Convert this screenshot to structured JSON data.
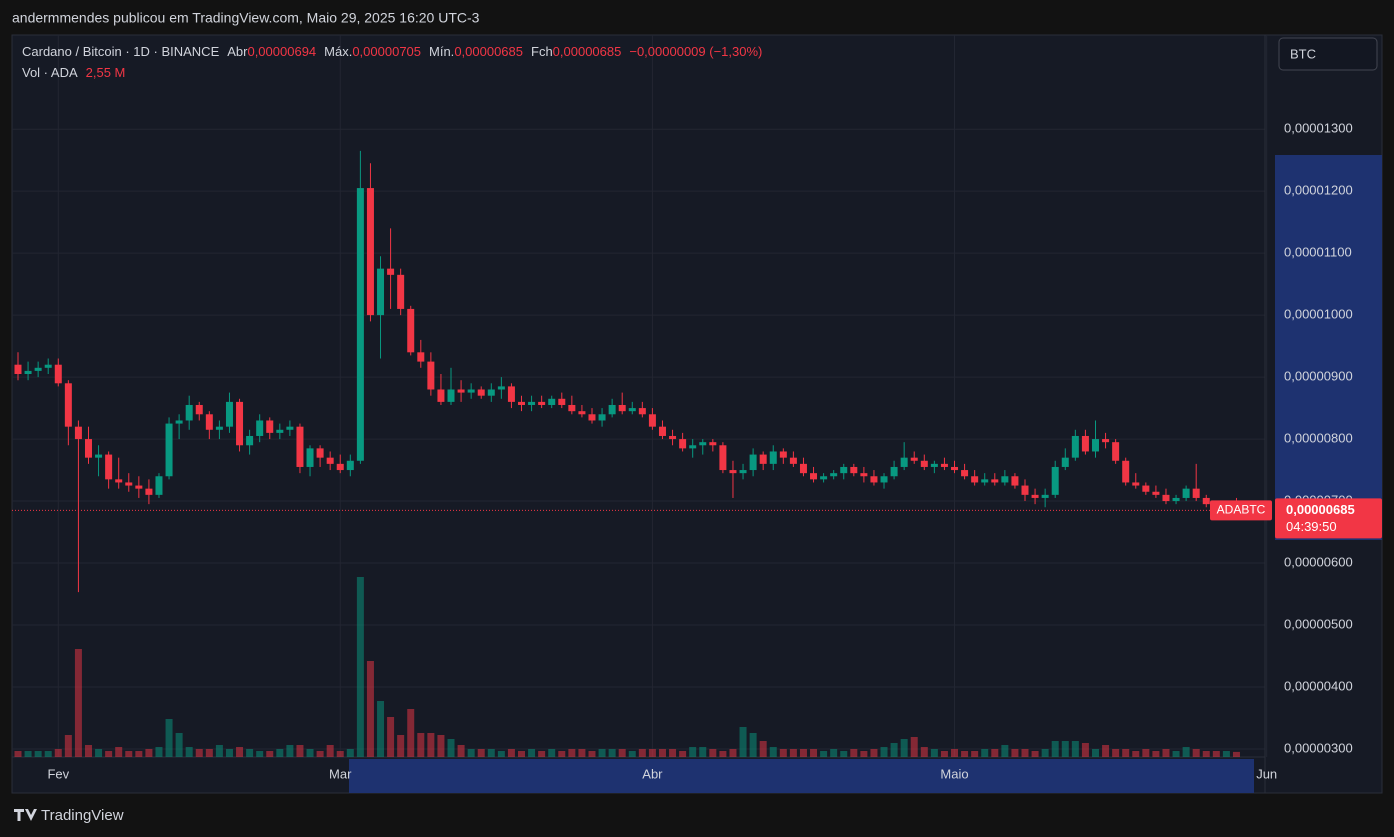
{
  "publisher": "andermmendes publicou em TradingView.com, Maio 29, 2025 16:20 UTC-3",
  "footer": {
    "logo": "TradingView"
  },
  "chart_data": {
    "type": "candlestick",
    "header": {
      "symbol": "Cardano / Bitcoin · 1D · BINANCE",
      "open_label": "Abr",
      "open": "0,00000694",
      "high_label": "Máx.",
      "high": "0,00000705",
      "low_label": "Mín.",
      "low": "0,00000685",
      "close_label": "Fch",
      "close": "0,00000685",
      "change": "−0,00000009 (−1,30%)",
      "volume_label": "Vol · ADA",
      "volume": "2,55 M"
    },
    "currency_button": "BTC",
    "price_tag": {
      "symbol": "ADABTC",
      "price": "0,00000685",
      "countdown": "04:39:50"
    },
    "up_color": "#089981",
    "down_color": "#f23645",
    "open": [
      9.2e-06,
      9.05e-06,
      9.1e-06,
      9.15e-06,
      9.2e-06,
      8.9e-06,
      8.2e-06,
      8e-06,
      7.7e-06,
      7.75e-06,
      7.35e-06,
      7.3e-06,
      7.25e-06,
      7.2e-06,
      7.1e-06,
      7.4e-06,
      8.25e-06,
      8.3e-06,
      8.55e-06,
      8.4e-06,
      8.15e-06,
      8.2e-06,
      8.6e-06,
      7.9e-06,
      8.05e-06,
      8.3e-06,
      8.1e-06,
      8.15e-06,
      8.2e-06,
      7.55e-06,
      7.85e-06,
      7.7e-06,
      7.6e-06,
      7.5e-06,
      7.65e-06,
      1.205e-05,
      1e-05,
      1.075e-05,
      1.065e-05,
      1.01e-05,
      9.4e-06,
      9.25e-06,
      8.8e-06,
      8.6e-06,
      8.8e-06,
      8.75e-06,
      8.8e-06,
      8.7e-06,
      8.8e-06,
      8.85e-06,
      8.6e-06,
      8.55e-06,
      8.6e-06,
      8.55e-06,
      8.65e-06,
      8.55e-06,
      8.45e-06,
      8.4e-06,
      8.3e-06,
      8.4e-06,
      8.55e-06,
      8.45e-06,
      8.5e-06,
      8.4e-06,
      8.2e-06,
      8.05e-06,
      8e-06,
      7.85e-06,
      7.9e-06,
      7.95e-06,
      7.9e-06,
      7.5e-06,
      7.45e-06,
      7.5e-06,
      7.75e-06,
      7.6e-06,
      7.8e-06,
      7.7e-06,
      7.6e-06,
      7.45e-06,
      7.35e-06,
      7.4e-06,
      7.45e-06,
      7.55e-06,
      7.45e-06,
      7.4e-06,
      7.3e-06,
      7.4e-06,
      7.55e-06,
      7.7e-06,
      7.65e-06,
      7.55e-06,
      7.6e-06,
      7.55e-06,
      7.5e-06,
      7.4e-06,
      7.3e-06,
      7.35e-06,
      7.3e-06,
      7.4e-06,
      7.25e-06,
      7.1e-06,
      7.05e-06,
      7.1e-06,
      7.55e-06,
      7.7e-06,
      8.05e-06,
      7.8e-06,
      8e-06,
      7.95e-06,
      7.65e-06,
      7.3e-06,
      7.25e-06,
      7.15e-06,
      7.1e-06,
      7e-06,
      7.05e-06,
      7.2e-06,
      7.05e-06,
      6.95e-06,
      6.92e-06,
      6.94e-06
    ],
    "high": [
      9.4e-06,
      9.25e-06,
      9.25e-06,
      9.3e-06,
      9.3e-06,
      8.95e-06,
      8.3e-06,
      8.2e-06,
      7.9e-06,
      7.8e-06,
      7.7e-06,
      7.45e-06,
      7.4e-06,
      7.35e-06,
      7.45e-06,
      8.35e-06,
      8.4e-06,
      8.7e-06,
      8.6e-06,
      8.45e-06,
      8.3e-06,
      8.75e-06,
      8.65e-06,
      8.15e-06,
      8.4e-06,
      8.35e-06,
      8.25e-06,
      8.3e-06,
      8.25e-06,
      7.9e-06,
      7.9e-06,
      7.8e-06,
      7.75e-06,
      7.75e-06,
      1.265e-05,
      1.245e-05,
      1.095e-05,
      1.14e-05,
      1.075e-05,
      1.015e-05,
      9.6e-06,
      9.4e-06,
      9.05e-06,
      9.15e-06,
      8.95e-06,
      8.9e-06,
      8.85e-06,
      8.9e-06,
      9e-06,
      8.9e-06,
      8.7e-06,
      8.7e-06,
      8.7e-06,
      8.7e-06,
      8.75e-06,
      8.7e-06,
      8.55e-06,
      8.5e-06,
      8.5e-06,
      8.65e-06,
      8.75e-06,
      8.6e-06,
      8.6e-06,
      8.5e-06,
      8.3e-06,
      8.15e-06,
      8.1e-06,
      8e-06,
      8e-06,
      8e-06,
      7.95e-06,
      7.65e-06,
      7.6e-06,
      7.85e-06,
      7.8e-06,
      7.9e-06,
      7.85e-06,
      7.8e-06,
      7.7e-06,
      7.55e-06,
      7.45e-06,
      7.5e-06,
      7.6e-06,
      7.6e-06,
      7.55e-06,
      7.5e-06,
      7.45e-06,
      7.65e-06,
      7.95e-06,
      7.8e-06,
      7.75e-06,
      7.65e-06,
      7.7e-06,
      7.65e-06,
      7.6e-06,
      7.5e-06,
      7.45e-06,
      7.45e-06,
      7.5e-06,
      7.45e-06,
      7.35e-06,
      7.2e-06,
      7.2e-06,
      7.65e-06,
      7.85e-06,
      8.15e-06,
      8.15e-06,
      8.3e-06,
      8.1e-06,
      8e-06,
      7.7e-06,
      7.45e-06,
      7.3e-06,
      7.25e-06,
      7.2e-06,
      7.1e-06,
      7.25e-06,
      7.6e-06,
      7.1e-06,
      7e-06,
      7e-06,
      7.05e-06
    ],
    "low": [
      8.95e-06,
      8.95e-06,
      9e-06,
      9.05e-06,
      8.85e-06,
      7.9e-06,
      5.53e-06,
      7.6e-06,
      7.4e-06,
      7.2e-06,
      7.2e-06,
      7.15e-06,
      7.05e-06,
      6.95e-06,
      7.05e-06,
      7.35e-06,
      8e-06,
      8.15e-06,
      8.3e-06,
      8e-06,
      8e-06,
      8.1e-06,
      7.8e-06,
      7.75e-06,
      7.95e-06,
      8e-06,
      8e-06,
      8.05e-06,
      7.45e-06,
      7.4e-06,
      7.55e-06,
      7.5e-06,
      7.45e-06,
      7.4e-06,
      7.6e-06,
      9.9e-06,
      9.3e-06,
      1.01e-05,
      1e-05,
      9.35e-06,
      9.15e-06,
      8.7e-06,
      8.55e-06,
      8.55e-06,
      8.6e-06,
      8.65e-06,
      8.65e-06,
      8.6e-06,
      8.65e-06,
      8.5e-06,
      8.45e-06,
      8.45e-06,
      8.5e-06,
      8.5e-06,
      8.5e-06,
      8.4e-06,
      8.35e-06,
      8.25e-06,
      8.2e-06,
      8.35e-06,
      8.4e-06,
      8.4e-06,
      8.35e-06,
      8.15e-06,
      8e-06,
      7.9e-06,
      7.8e-06,
      7.7e-06,
      7.75e-06,
      7.8e-06,
      7.45e-06,
      7.05e-06,
      7.35e-06,
      7.4e-06,
      7.5e-06,
      7.5e-06,
      7.6e-06,
      7.55e-06,
      7.4e-06,
      7.3e-06,
      7.3e-06,
      7.35e-06,
      7.35e-06,
      7.4e-06,
      7.3e-06,
      7.25e-06,
      7.2e-06,
      7.35e-06,
      7.5e-06,
      7.6e-06,
      7.5e-06,
      7.45e-06,
      7.5e-06,
      7.45e-06,
      7.35e-06,
      7.25e-06,
      7.25e-06,
      7.25e-06,
      7.25e-06,
      7.2e-06,
      7e-06,
      6.95e-06,
      6.9e-06,
      7.05e-06,
      7.5e-06,
      7.65e-06,
      7.75e-06,
      7.7e-06,
      7.85e-06,
      7.6e-06,
      7.25e-06,
      7.2e-06,
      7.1e-06,
      7.05e-06,
      6.95e-06,
      6.95e-06,
      7e-06,
      7e-06,
      6.9e-06,
      6.88e-06,
      6.88e-06,
      6.85e-06
    ],
    "close": [
      9.05e-06,
      9.1e-06,
      9.15e-06,
      9.2e-06,
      8.9e-06,
      8.2e-06,
      8e-06,
      7.7e-06,
      7.75e-06,
      7.35e-06,
      7.3e-06,
      7.25e-06,
      7.2e-06,
      7.1e-06,
      7.4e-06,
      8.25e-06,
      8.3e-06,
      8.55e-06,
      8.4e-06,
      8.15e-06,
      8.2e-06,
      8.6e-06,
      7.9e-06,
      8.05e-06,
      8.3e-06,
      8.1e-06,
      8.15e-06,
      8.2e-06,
      7.55e-06,
      7.85e-06,
      7.7e-06,
      7.6e-06,
      7.5e-06,
      7.65e-06,
      1.205e-05,
      1e-05,
      1.075e-05,
      1.065e-05,
      1.01e-05,
      9.4e-06,
      9.25e-06,
      8.8e-06,
      8.6e-06,
      8.8e-06,
      8.75e-06,
      8.8e-06,
      8.7e-06,
      8.8e-06,
      8.85e-06,
      8.6e-06,
      8.55e-06,
      8.6e-06,
      8.55e-06,
      8.65e-06,
      8.55e-06,
      8.45e-06,
      8.4e-06,
      8.3e-06,
      8.4e-06,
      8.55e-06,
      8.45e-06,
      8.5e-06,
      8.4e-06,
      8.2e-06,
      8.05e-06,
      8e-06,
      7.85e-06,
      7.9e-06,
      7.95e-06,
      7.9e-06,
      7.5e-06,
      7.45e-06,
      7.5e-06,
      7.75e-06,
      7.6e-06,
      7.8e-06,
      7.7e-06,
      7.6e-06,
      7.45e-06,
      7.35e-06,
      7.4e-06,
      7.45e-06,
      7.55e-06,
      7.45e-06,
      7.4e-06,
      7.3e-06,
      7.4e-06,
      7.55e-06,
      7.7e-06,
      7.65e-06,
      7.55e-06,
      7.6e-06,
      7.55e-06,
      7.5e-06,
      7.4e-06,
      7.3e-06,
      7.35e-06,
      7.3e-06,
      7.4e-06,
      7.25e-06,
      7.1e-06,
      7.05e-06,
      7.1e-06,
      7.55e-06,
      7.7e-06,
      8.05e-06,
      7.8e-06,
      8e-06,
      7.95e-06,
      7.65e-06,
      7.3e-06,
      7.25e-06,
      7.15e-06,
      7.1e-06,
      7e-06,
      7.05e-06,
      7.2e-06,
      7.05e-06,
      6.95e-06,
      6.92e-06,
      6.94e-06,
      6.85e-06
    ],
    "volume": [
      3,
      3,
      3,
      3,
      4,
      11,
      54,
      6,
      4,
      3,
      5,
      3,
      3,
      4,
      5,
      19,
      12,
      5,
      4,
      4,
      6,
      4,
      5,
      4,
      3,
      3,
      4,
      6,
      6,
      4,
      3,
      6,
      3,
      4,
      90,
      48,
      28,
      20,
      11,
      24,
      12,
      12,
      11,
      9,
      6,
      4,
      4,
      4,
      3,
      4,
      3,
      4,
      3,
      4,
      3,
      4,
      4,
      3,
      4,
      4,
      4,
      3,
      4,
      4,
      4,
      4,
      3,
      5,
      5,
      4,
      3,
      4,
      15,
      12,
      8,
      5,
      4,
      4,
      4,
      4,
      3,
      4,
      3,
      4,
      3,
      4,
      5,
      7,
      9,
      10,
      5,
      4,
      3,
      4,
      3,
      3,
      4,
      4,
      6,
      4,
      4,
      3,
      4,
      8,
      8,
      8,
      7,
      4,
      6,
      4,
      4,
      3,
      4,
      3,
      4,
      3,
      5,
      4,
      3,
      3,
      3,
      2.55
    ],
    "xticks": [
      {
        "value": 4,
        "label": "Fev"
      },
      {
        "value": 32,
        "label": "Mar"
      },
      {
        "value": 63,
        "label": "Abr"
      },
      {
        "value": 93,
        "label": "Maio"
      },
      {
        "value": 124,
        "label": "Jun"
      }
    ],
    "ylim": [
      2.87e-06,
      1.452e-05
    ],
    "yticks": [
      {
        "value": 3e-06,
        "label": "0,00000300"
      },
      {
        "value": 4e-06,
        "label": "0,00000400"
      },
      {
        "value": 5e-06,
        "label": "0,00000500"
      },
      {
        "value": 6e-06,
        "label": "0,00000600"
      },
      {
        "value": 7e-06,
        "label": "0,00000700"
      },
      {
        "value": 8e-06,
        "label": "0,00000800"
      },
      {
        "value": 9e-06,
        "label": "0,00000900"
      },
      {
        "value": 1e-05,
        "label": "0,00001000"
      },
      {
        "value": 1.1e-05,
        "label": "0,00001100"
      },
      {
        "value": 1.2e-05,
        "label": "0,00001200"
      },
      {
        "value": 1.3e-05,
        "label": "0,00001300"
      }
    ],
    "grid": true
  }
}
